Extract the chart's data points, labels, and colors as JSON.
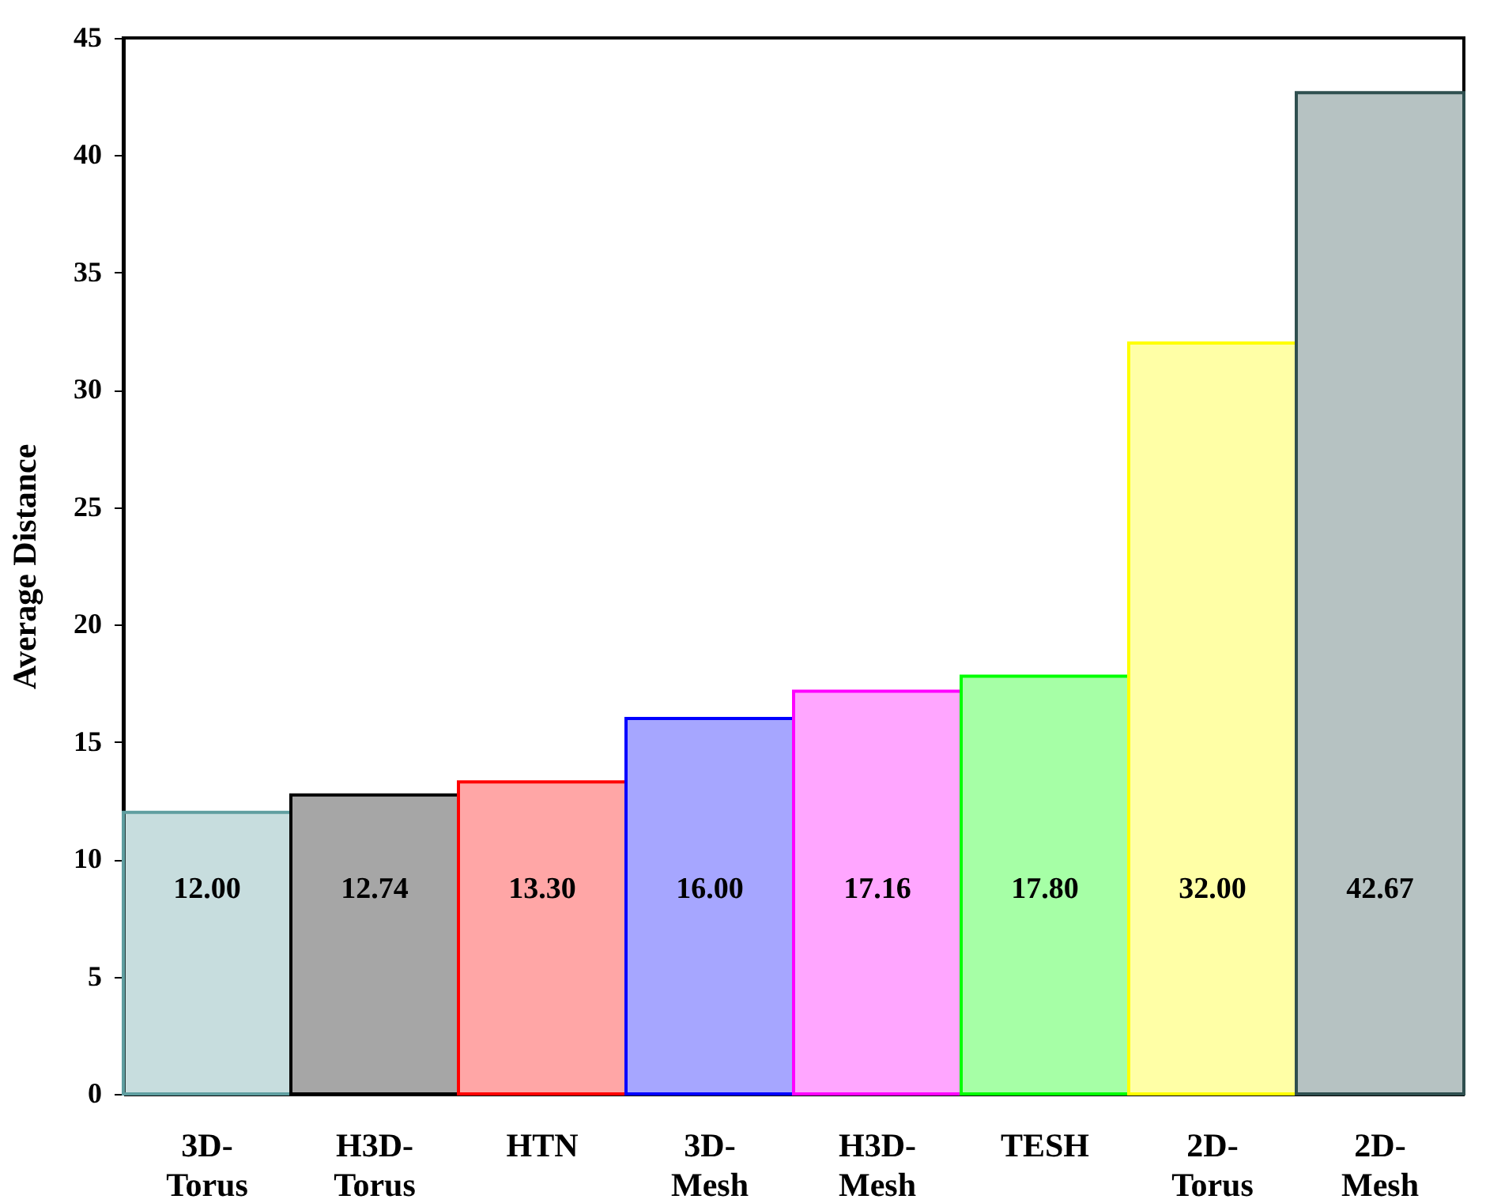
{
  "chart_data": {
    "type": "bar",
    "ylabel": "Average Distance",
    "categories": [
      "3D-Torus",
      "H3D-Torus",
      "HTN",
      "3D-Mesh",
      "H3D-Mesh",
      "TESH",
      "2D-Torus",
      "2D-Mesh"
    ],
    "values": [
      12.0,
      12.74,
      13.3,
      16.0,
      17.16,
      17.8,
      32.0,
      42.67
    ],
    "colors": [
      "#5f9ea0",
      "#000000",
      "#ff0000",
      "#0000ff",
      "#ff00ff",
      "#00ff00",
      "#ffff00",
      "#2f4f4f"
    ],
    "ylim": [
      0,
      45
    ],
    "yticks": [
      0,
      5,
      10,
      15,
      20,
      25,
      30,
      35,
      40,
      45
    ],
    "grid": false,
    "value_labels": [
      "12.00",
      "12.74",
      "13.30",
      "16.00",
      "17.16",
      "17.80",
      "32.00",
      "42.67"
    ]
  }
}
